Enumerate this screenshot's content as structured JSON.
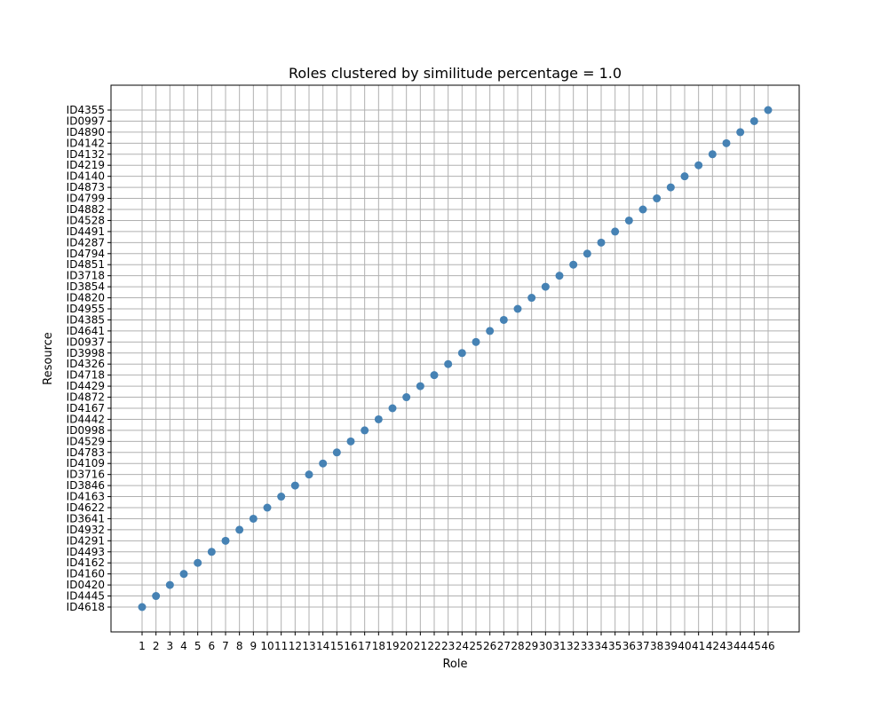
{
  "chart_data": {
    "type": "scatter",
    "title": "Roles clustered by similitude percentage = 1.0",
    "xlabel": "Role",
    "ylabel": "Resource",
    "grid": true,
    "marker_color": "#4682b4",
    "grid_color": "#b0b0b0",
    "x": [
      1,
      2,
      3,
      4,
      5,
      6,
      7,
      8,
      9,
      10,
      11,
      12,
      13,
      14,
      15,
      16,
      17,
      18,
      19,
      20,
      21,
      22,
      23,
      24,
      25,
      26,
      27,
      28,
      29,
      30,
      31,
      32,
      33,
      34,
      35,
      36,
      37,
      38,
      39,
      40,
      41,
      42,
      43,
      44,
      45,
      46
    ],
    "y_categories": [
      "ID4618",
      "ID4445",
      "ID0420",
      "ID4160",
      "ID4162",
      "ID4493",
      "ID4291",
      "ID4932",
      "ID3641",
      "ID4622",
      "ID4163",
      "ID3846",
      "ID3716",
      "ID4109",
      "ID4783",
      "ID4529",
      "ID0998",
      "ID4442",
      "ID4167",
      "ID4872",
      "ID4429",
      "ID4718",
      "ID4326",
      "ID3998",
      "ID0937",
      "ID4641",
      "ID4385",
      "ID4955",
      "ID4820",
      "ID3854",
      "ID3718",
      "ID4851",
      "ID4794",
      "ID4287",
      "ID4491",
      "ID4528",
      "ID4882",
      "ID4799",
      "ID4873",
      "ID4140",
      "ID4219",
      "ID4132",
      "ID4142",
      "ID4890",
      "ID0997",
      "ID4355"
    ],
    "points": [
      {
        "x": 1,
        "y": "ID4618"
      },
      {
        "x": 2,
        "y": "ID4445"
      },
      {
        "x": 3,
        "y": "ID0420"
      },
      {
        "x": 4,
        "y": "ID4160"
      },
      {
        "x": 5,
        "y": "ID4162"
      },
      {
        "x": 6,
        "y": "ID4493"
      },
      {
        "x": 7,
        "y": "ID4291"
      },
      {
        "x": 8,
        "y": "ID4932"
      },
      {
        "x": 9,
        "y": "ID3641"
      },
      {
        "x": 10,
        "y": "ID4622"
      },
      {
        "x": 11,
        "y": "ID4163"
      },
      {
        "x": 12,
        "y": "ID3846"
      },
      {
        "x": 13,
        "y": "ID3716"
      },
      {
        "x": 14,
        "y": "ID4109"
      },
      {
        "x": 15,
        "y": "ID4783"
      },
      {
        "x": 16,
        "y": "ID4529"
      },
      {
        "x": 17,
        "y": "ID0998"
      },
      {
        "x": 18,
        "y": "ID4442"
      },
      {
        "x": 19,
        "y": "ID4167"
      },
      {
        "x": 20,
        "y": "ID4872"
      },
      {
        "x": 21,
        "y": "ID4429"
      },
      {
        "x": 22,
        "y": "ID4718"
      },
      {
        "x": 23,
        "y": "ID4326"
      },
      {
        "x": 24,
        "y": "ID3998"
      },
      {
        "x": 25,
        "y": "ID0937"
      },
      {
        "x": 26,
        "y": "ID4641"
      },
      {
        "x": 27,
        "y": "ID4385"
      },
      {
        "x": 28,
        "y": "ID4955"
      },
      {
        "x": 29,
        "y": "ID4820"
      },
      {
        "x": 30,
        "y": "ID3854"
      },
      {
        "x": 31,
        "y": "ID3718"
      },
      {
        "x": 32,
        "y": "ID4851"
      },
      {
        "x": 33,
        "y": "ID4794"
      },
      {
        "x": 34,
        "y": "ID4287"
      },
      {
        "x": 35,
        "y": "ID4491"
      },
      {
        "x": 36,
        "y": "ID4528"
      },
      {
        "x": 37,
        "y": "ID4882"
      },
      {
        "x": 38,
        "y": "ID4799"
      },
      {
        "x": 39,
        "y": "ID4873"
      },
      {
        "x": 40,
        "y": "ID4140"
      },
      {
        "x": 41,
        "y": "ID4219"
      },
      {
        "x": 42,
        "y": "ID4132"
      },
      {
        "x": 43,
        "y": "ID4142"
      },
      {
        "x": 44,
        "y": "ID4890"
      },
      {
        "x": 45,
        "y": "ID0997"
      },
      {
        "x": 46,
        "y": "ID4355"
      }
    ]
  }
}
